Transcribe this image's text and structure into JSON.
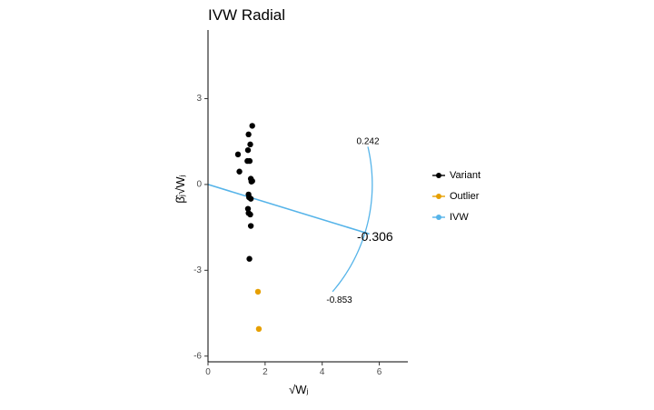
{
  "chart_data": {
    "type": "scatter",
    "title": "IVW Radial",
    "xlabel": "√Wⱼ",
    "ylabel": "β̂ⱼ√Wⱼ",
    "xlim": [
      0,
      7
    ],
    "ylim": [
      -6.2,
      5.4
    ],
    "x_ticks": [
      0,
      2,
      4,
      6
    ],
    "y_ticks": [
      -6,
      -3,
      0,
      3
    ],
    "grid": false,
    "legend_position": "right",
    "legend": [
      "Variant",
      "Outlier",
      "IVW"
    ],
    "colors": {
      "Variant": "#000000",
      "Outlier": "#E69F00",
      "IVW": "#56B4E9"
    },
    "series": [
      {
        "name": "Variant",
        "points": [
          [
            1.55,
            2.05
          ],
          [
            1.42,
            1.75
          ],
          [
            1.48,
            1.4
          ],
          [
            1.4,
            1.2
          ],
          [
            1.05,
            1.05
          ],
          [
            1.38,
            0.82
          ],
          [
            1.46,
            0.82
          ],
          [
            1.1,
            0.45
          ],
          [
            1.5,
            0.2
          ],
          [
            1.52,
            0.1
          ],
          [
            1.55,
            0.12
          ],
          [
            1.42,
            -0.35
          ],
          [
            1.44,
            -0.45
          ],
          [
            1.5,
            -0.5
          ],
          [
            1.4,
            -0.85
          ],
          [
            1.42,
            -1.0
          ],
          [
            1.48,
            -1.05
          ],
          [
            1.5,
            -1.45
          ],
          [
            1.45,
            -2.6
          ]
        ]
      },
      {
        "name": "Outlier",
        "points": [
          [
            1.75,
            -3.75
          ],
          [
            1.78,
            -5.05
          ]
        ]
      }
    ],
    "ivw": {
      "slope": -0.306,
      "x_end": 5.65
    },
    "annotations": [
      {
        "text": "0.242",
        "x": 5.6,
        "y": 1.5
      },
      {
        "text": "-0.306",
        "x": 5.85,
        "y": -1.85
      },
      {
        "text": "-0.853",
        "x": 4.6,
        "y": -4.05
      }
    ]
  }
}
